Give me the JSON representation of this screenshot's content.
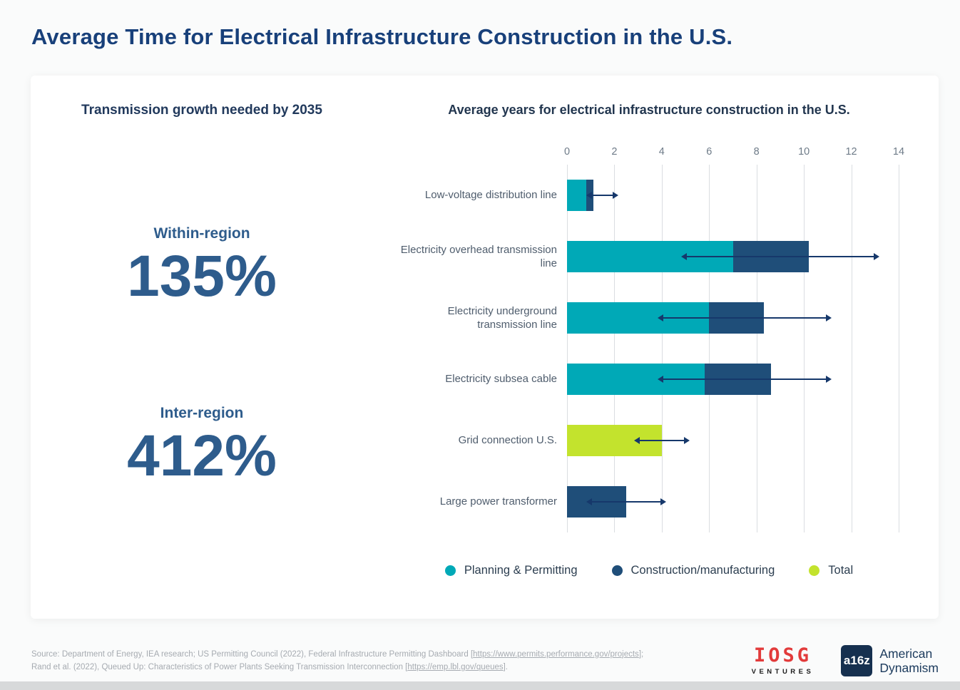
{
  "page": {
    "title": "Average Time for Electrical Infrastructure Construction in the U.S."
  },
  "left_panel": {
    "heading": "Transmission growth needed by 2035",
    "stats": [
      {
        "label": "Within-region",
        "value": "135%"
      },
      {
        "label": "Inter-region",
        "value": "412%"
      }
    ]
  },
  "chart_data": {
    "type": "bar",
    "orientation": "horizontal",
    "title": "Average years for electrical infrastructure construction in the U.S.",
    "unit": "years",
    "xlim": [
      0,
      14
    ],
    "xticks": [
      0,
      2,
      4,
      6,
      8,
      10,
      12,
      14
    ],
    "grid": true,
    "legend_position": "bottom",
    "categories": [
      "Low-voltage distribution line",
      "Electricity overhead transmission line",
      "Electricity underground transmission line",
      "Electricity subsea cable",
      "Grid connection U.S.",
      "Large power transformer"
    ],
    "series": [
      {
        "name": "Planning & Permitting",
        "color": "#00a9b7",
        "values": [
          0.8,
          7.0,
          6.0,
          5.8,
          0,
          0
        ]
      },
      {
        "name": "Construction/manufacturing",
        "color": "#1f4e79",
        "values": [
          0.3,
          3.2,
          2.3,
          2.8,
          0,
          2.5
        ]
      },
      {
        "name": "Total",
        "color": "#c3e32d",
        "values": [
          0,
          0,
          0,
          0,
          4.0,
          0
        ]
      }
    ],
    "error_bars": [
      {
        "low": 1.0,
        "high": 2.0
      },
      {
        "low": 5.0,
        "high": 13.0
      },
      {
        "low": 4.0,
        "high": 11.0
      },
      {
        "low": 4.0,
        "high": 11.0
      },
      {
        "low": 3.0,
        "high": 5.0
      },
      {
        "low": 1.0,
        "high": 4.0
      }
    ],
    "error_bar_color": "#16386b",
    "gridline_color": "#dadde1"
  },
  "footer": {
    "text1": "Source: Department of Energy, IEA research; US Permitting Council (2022), Federal Infrastructure Permitting Dashboard [",
    "link1": "https://www.permits.performance.gov/projects",
    "text2": "]; Rand et al. (2022), Queued Up: Characteristics of Power Plants Seeking Transmission Interconnection [",
    "link2": "https://emp.lbl.gov/queues",
    "text3": "]."
  },
  "branding": {
    "iosg_name": "IOSG",
    "iosg_sub": "VENTURES",
    "a16z": "a16z",
    "a16z_line1": "American",
    "a16z_line2": "Dynamism"
  }
}
